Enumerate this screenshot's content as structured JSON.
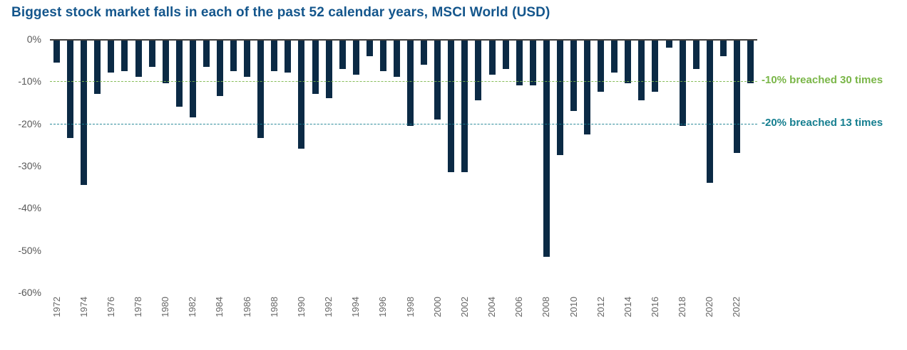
{
  "title": "Biggest stock market falls in each of the past 52 calendar years, MSCI World (USD)",
  "colors": {
    "title": "#14568c",
    "bar": "#0b2a45",
    "axis_text": "#595959",
    "zero_line": "#3d3d3d",
    "ref_minus10": "#7ab648",
    "ref_minus20": "#167f90"
  },
  "annotations": {
    "minus10": {
      "label": "-10% breached 30 times",
      "value": -10
    },
    "minus20": {
      "label": "-20% breached 13 times",
      "value": -20
    }
  },
  "chart_data": {
    "type": "bar",
    "title": "Biggest stock market falls in each of the past 52 calendar years, MSCI World (USD)",
    "xlabel": "",
    "ylabel": "",
    "ylim": [
      -60,
      0
    ],
    "grid": false,
    "yticks": [
      0,
      -10,
      -20,
      -30,
      -40,
      -50,
      -60
    ],
    "ytick_labels": [
      "0%",
      "-10%",
      "-20%",
      "-30%",
      "-40%",
      "-50%",
      "-60%"
    ],
    "x_tick_step": 2,
    "categories": [
      1972,
      1973,
      1974,
      1975,
      1976,
      1977,
      1978,
      1979,
      1980,
      1981,
      1982,
      1983,
      1984,
      1985,
      1986,
      1987,
      1988,
      1989,
      1990,
      1991,
      1992,
      1993,
      1994,
      1995,
      1996,
      1997,
      1998,
      1999,
      2000,
      2001,
      2002,
      2003,
      2004,
      2005,
      2006,
      2007,
      2008,
      2009,
      2010,
      2011,
      2012,
      2013,
      2014,
      2015,
      2016,
      2017,
      2018,
      2019,
      2020,
      2021,
      2022,
      2023
    ],
    "values": [
      -5.5,
      -23.5,
      -34.5,
      -13,
      -8,
      -7.5,
      -9,
      -6.5,
      -10.5,
      -16,
      -18.5,
      -6.5,
      -13.5,
      -7.5,
      -9,
      -23.5,
      -7.5,
      -8,
      -26,
      -13,
      -14,
      -7,
      -8.5,
      -4,
      -7.5,
      -9,
      -20.5,
      -6,
      -19,
      -31.5,
      -31.5,
      -14.5,
      -8.5,
      -7,
      -11,
      -11,
      -51.5,
      -27.5,
      -17,
      -22.5,
      -12.5,
      -8,
      -10.5,
      -14.5,
      -12.5,
      -2,
      -20.5,
      -7,
      -34,
      -4,
      -27,
      -10.5
    ],
    "bar_color": "#0b2a45",
    "legend": "none",
    "reference_lines": [
      {
        "y": -10,
        "label": "-10% breached 30 times",
        "color": "#7ab648",
        "style": "dashed"
      },
      {
        "y": -20,
        "label": "-20% breached 13 times",
        "color": "#167f90",
        "style": "dashed"
      }
    ]
  }
}
